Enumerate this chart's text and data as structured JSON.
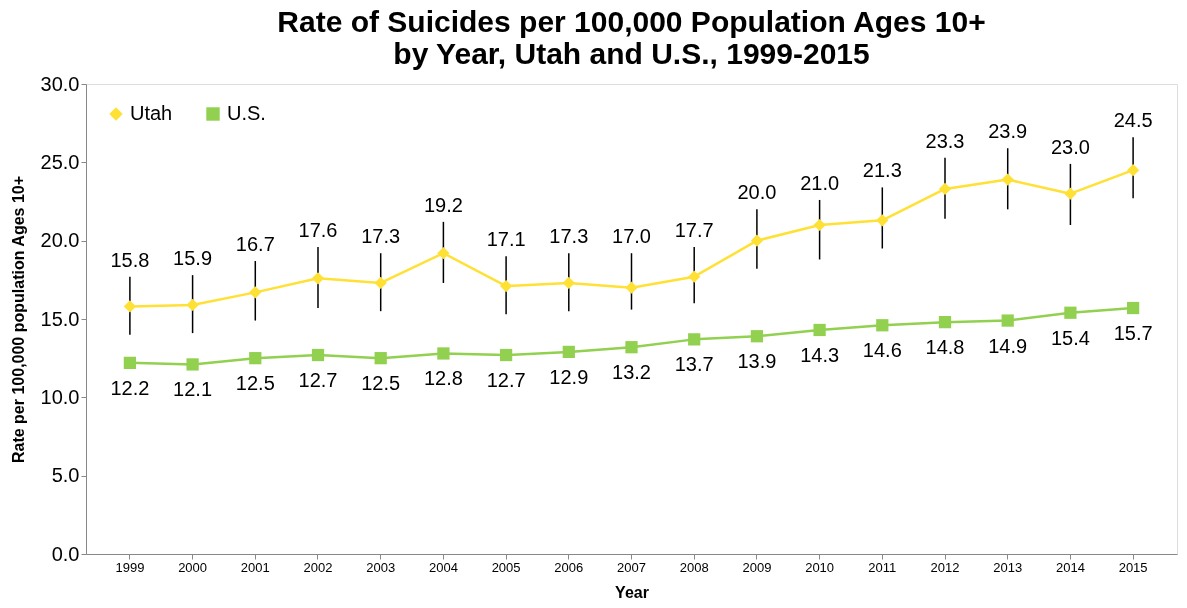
{
  "chart_data": {
    "type": "line",
    "title": "Rate of Suicides per 100,000 Population Ages 10+ by Year, Utah and U.S., 1999-2015",
    "xlabel": "Year",
    "ylabel": "Rate per 100,000 population Ages 10+",
    "categories": [
      "1999",
      "2000",
      "2001",
      "2002",
      "2003",
      "2004",
      "2005",
      "2006",
      "2007",
      "2008",
      "2009",
      "2010",
      "2011",
      "2012",
      "2013",
      "2014",
      "2015"
    ],
    "series": [
      {
        "name": "Utah",
        "color": "#ffe135",
        "marker": "diamond",
        "value_labels": [
          "15.8",
          "15.9",
          "16.7",
          "17.6",
          "17.3",
          "19.2",
          "17.1",
          "17.3",
          "17.0",
          "17.7",
          "20.0",
          "21.0",
          "21.3",
          "23.3",
          "23.9",
          "23.0",
          "24.5"
        ],
        "values": [
          15.8,
          15.9,
          16.7,
          17.6,
          17.3,
          19.2,
          17.1,
          17.3,
          17.0,
          17.7,
          20.0,
          21.0,
          21.3,
          23.3,
          23.9,
          23.0,
          24.5
        ],
        "errors": [
          [
            14.0,
            17.7
          ],
          [
            14.1,
            17.8
          ],
          [
            14.9,
            18.7
          ],
          [
            15.7,
            19.6
          ],
          [
            15.5,
            19.2
          ],
          [
            17.3,
            21.2
          ],
          [
            15.3,
            19.0
          ],
          [
            15.5,
            19.2
          ],
          [
            15.6,
            19.2
          ],
          [
            16.0,
            19.6
          ],
          [
            18.2,
            22.0
          ],
          [
            18.8,
            22.6
          ],
          [
            19.5,
            23.4
          ],
          [
            21.4,
            25.3
          ],
          [
            22.0,
            25.9
          ],
          [
            21.0,
            24.9
          ],
          [
            22.7,
            26.6
          ]
        ]
      },
      {
        "name": "U.S.",
        "color": "#92d050",
        "marker": "square",
        "value_labels": [
          "12.2",
          "12.1",
          "12.5",
          "12.7",
          "12.5",
          "12.8",
          "12.7",
          "12.9",
          "13.2",
          "13.7",
          "13.9",
          "14.3",
          "14.6",
          "14.8",
          "14.9",
          "15.4",
          "15.7"
        ],
        "values": [
          12.2,
          12.1,
          12.5,
          12.7,
          12.5,
          12.8,
          12.7,
          12.9,
          13.2,
          13.7,
          13.9,
          14.3,
          14.6,
          14.8,
          14.9,
          15.4,
          15.7
        ]
      }
    ],
    "ylim": [
      0,
      30
    ],
    "yticks": [
      {
        "value": 0,
        "label": "0.0"
      },
      {
        "value": 5,
        "label": "5.0"
      },
      {
        "value": 10,
        "label": "10.0"
      },
      {
        "value": 15,
        "label": "15.0"
      },
      {
        "value": 20,
        "label": "20.0"
      },
      {
        "value": 25,
        "label": "25.0"
      },
      {
        "value": 30,
        "label": "30.0"
      }
    ],
    "grid": false,
    "legend": "top left",
    "line_style": "solid"
  }
}
